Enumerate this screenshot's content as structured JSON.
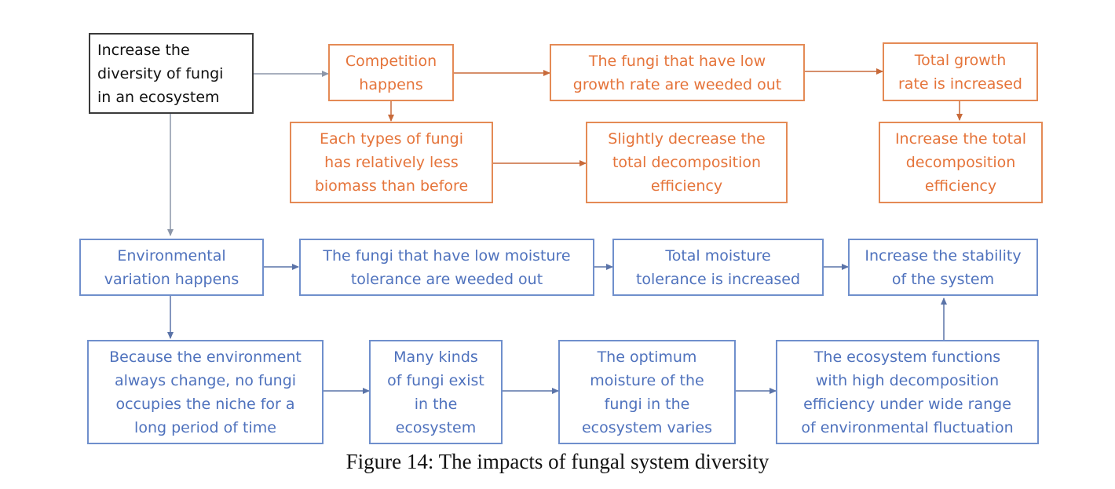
{
  "boxes": {
    "increase_diversity": "Increase the\ndiversity of fungi\nin an ecosystem",
    "competition": "Competition\nhappens",
    "low_growth_weeded": "The fungi that have low\ngrowth rate are weeded out",
    "total_growth_increased": "Total growth\nrate is increased",
    "less_biomass": "Each types of fungi\nhas relatively less\nbiomass than before",
    "slightly_decrease": "Slightly decrease the\ntotal decomposition\nefficiency",
    "increase_decomposition": "Increase the total\ndecomposition\nefficiency",
    "environmental_variation": "Environmental\nvariation happens",
    "low_moisture_weeded": "The fungi that have low moisture\ntolerance are weeded out",
    "total_moisture": "Total moisture\ntolerance is increased",
    "increase_stability": "Increase the stability\nof the system",
    "environment_changes": "Because the environment\nalways change, no fungi\noccupies the niche for a\nlong period of time",
    "many_kinds": "Many kinds\nof fungi exist\nin the\necosystem",
    "optimum_moisture": "The optimum\nmoisture of the\nfungi in the\necosystem varies",
    "ecosystem_functions": "The ecosystem functions\nwith high decomposition\nefficiency under wide range\nof environmental fluctuation"
  },
  "caption": "Figure 14: The impacts of fungal system diversity",
  "colors": {
    "orange": "#e5743a",
    "blue": "#4f72bd",
    "black": "#3a3a3a"
  }
}
